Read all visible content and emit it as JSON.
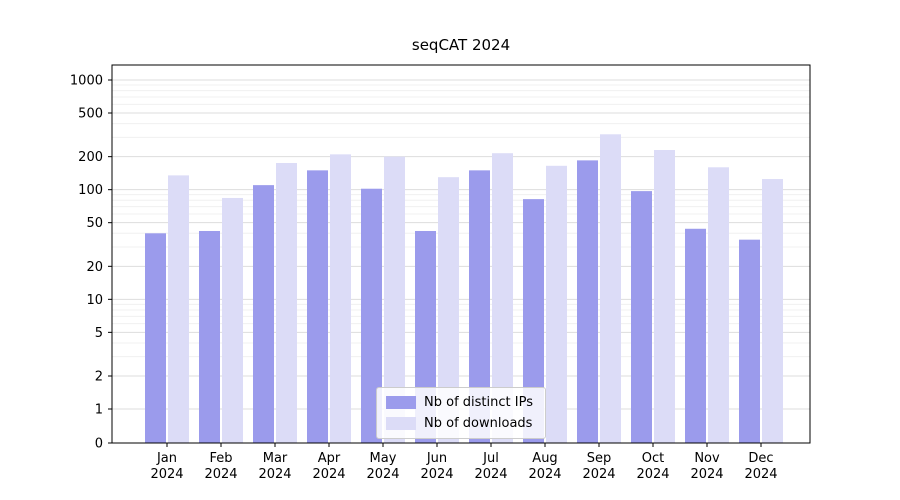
{
  "chart_data": {
    "type": "bar",
    "title": "seqCAT 2024",
    "categories": [
      "Jan",
      "Feb",
      "Mar",
      "Apr",
      "May",
      "Jun",
      "Jul",
      "Aug",
      "Sep",
      "Oct",
      "Nov",
      "Dec"
    ],
    "year_label": "2024",
    "series": [
      {
        "name": "Nb of distinct IPs",
        "color": "#9b9bec",
        "values": [
          40,
          42,
          110,
          150,
          102,
          42,
          150,
          82,
          185,
          97,
          44,
          35
        ]
      },
      {
        "name": "Nb of downloads",
        "color": "#dcdcf7",
        "values": [
          135,
          84,
          175,
          210,
          200,
          130,
          215,
          165,
          320,
          230,
          160,
          125
        ]
      }
    ],
    "yticks": [
      0,
      1,
      2,
      5,
      10,
      20,
      50,
      100,
      200,
      500,
      1000
    ],
    "ylim": [
      0,
      1100
    ],
    "scale": "symlog",
    "grid": "horizontal",
    "legend_position": "lower center",
    "xlabel": "",
    "ylabel": ""
  }
}
